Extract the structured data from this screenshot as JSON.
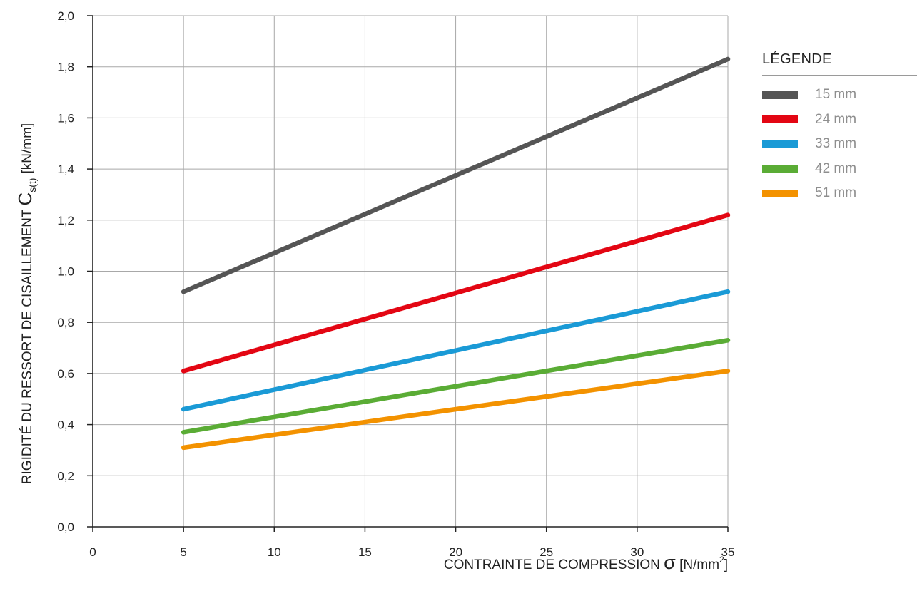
{
  "chart_data": {
    "type": "line",
    "title": "",
    "xlabel": {
      "text": "CONTRAINTE DE COMPRESSION",
      "symbol": "σ",
      "unit_open": "[N/mm",
      "unit_sup": "2",
      "unit_close": "]"
    },
    "ylabel": {
      "text": "RIGIDITÉ DU RESSORT DE CISAILLEMENT",
      "symbol": "C",
      "subscript": "s(t)",
      "unit": "[kN/mm]"
    },
    "xlim": [
      0,
      35
    ],
    "ylim": [
      0,
      2.0
    ],
    "x_ticks": [
      0,
      5,
      10,
      15,
      20,
      25,
      30,
      35
    ],
    "x_tick_labels": [
      "0",
      "5",
      "10",
      "15",
      "20",
      "25",
      "30",
      "35"
    ],
    "y_ticks": [
      0,
      0.2,
      0.4,
      0.6,
      0.8,
      1.0,
      1.2,
      1.4,
      1.6,
      1.8,
      2.0
    ],
    "y_tick_labels": [
      "0,0",
      "0,2",
      "0,4",
      "0,6",
      "0,8",
      "1,0",
      "1,2",
      "1,4",
      "1,6",
      "1,8",
      "2,0"
    ],
    "grid": true,
    "legend_position": "right",
    "legend_title": "LÉGENDE",
    "series": [
      {
        "name": "15 mm",
        "color": "#555555",
        "x": [
          5,
          35
        ],
        "y": [
          0.92,
          1.83
        ]
      },
      {
        "name": "24 mm",
        "color": "#e30613",
        "x": [
          5,
          35
        ],
        "y": [
          0.61,
          1.22
        ]
      },
      {
        "name": "33 mm",
        "color": "#1a9ad6",
        "x": [
          5,
          35
        ],
        "y": [
          0.46,
          0.92
        ]
      },
      {
        "name": "42 mm",
        "color": "#5aac35",
        "x": [
          5,
          35
        ],
        "y": [
          0.37,
          0.73
        ]
      },
      {
        "name": "51 mm",
        "color": "#f39200",
        "x": [
          5,
          35
        ],
        "y": [
          0.31,
          0.61
        ]
      }
    ]
  }
}
